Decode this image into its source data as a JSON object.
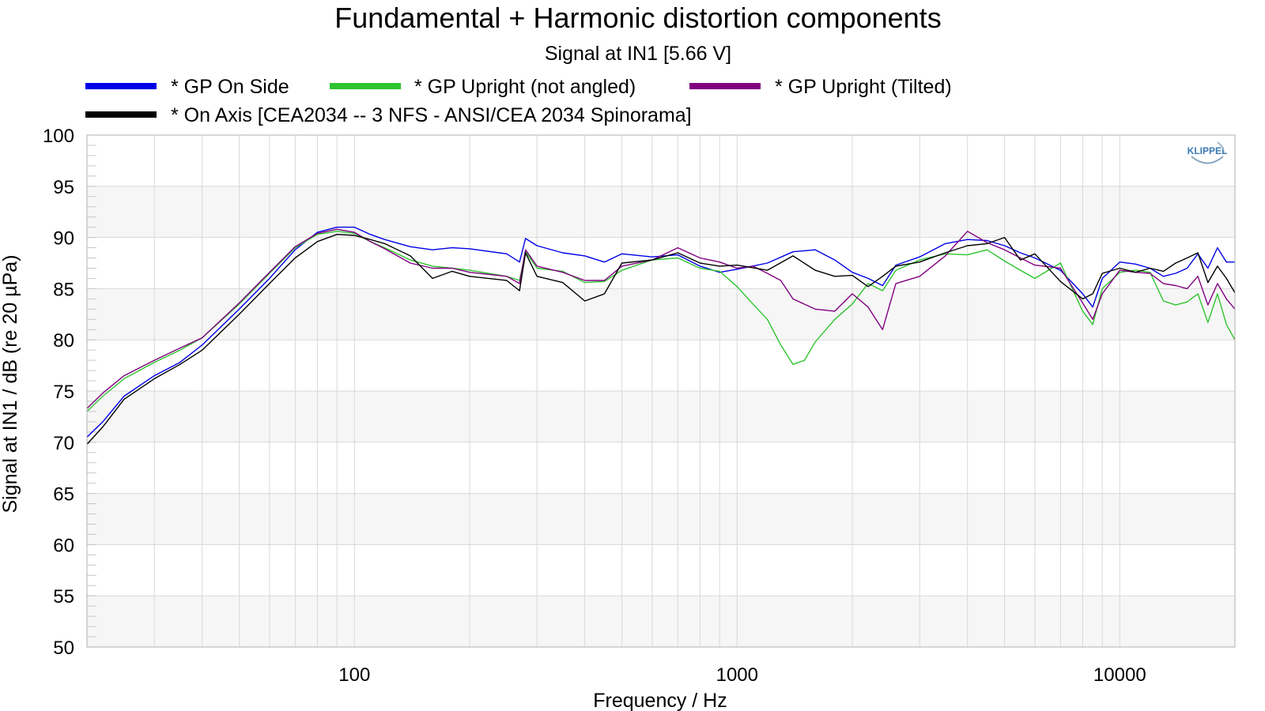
{
  "chart_data": {
    "type": "line",
    "title": "Fundamental + Harmonic distortion components",
    "subtitle": "Signal at IN1 [5.66 V]",
    "xlabel": "Frequency / Hz",
    "ylabel": "Signal at IN1 / dB (re 20 µPa)",
    "x_scale": "log",
    "xlim": [
      20,
      20000
    ],
    "ylim": [
      50,
      100
    ],
    "x_ticks": [
      100,
      1000,
      10000
    ],
    "x_tick_labels": [
      "100",
      "1000",
      "10000"
    ],
    "y_ticks": [
      50,
      55,
      60,
      65,
      70,
      75,
      80,
      85,
      90,
      95,
      100
    ],
    "y_tick_labels": [
      "50",
      "55",
      "60",
      "65",
      "70",
      "75",
      "80",
      "85",
      "90",
      "95",
      "100"
    ],
    "grid": true,
    "legend_position": "top",
    "logo": "KLIPPEL",
    "series": [
      {
        "name": "* GP On Side",
        "color": "#0000e6",
        "x": [
          20,
          22,
          25,
          30,
          35,
          40,
          50,
          60,
          70,
          80,
          90,
          100,
          110,
          120,
          140,
          160,
          180,
          200,
          250,
          270,
          280,
          300,
          350,
          400,
          450,
          500,
          600,
          700,
          800,
          900,
          1000,
          1200,
          1400,
          1600,
          1800,
          2000,
          2200,
          2400,
          2600,
          3000,
          3500,
          4000,
          4500,
          5000,
          5500,
          6000,
          7000,
          8000,
          8500,
          9000,
          10000,
          11000,
          12000,
          13000,
          14000,
          15000,
          16000,
          17000,
          18000,
          19000,
          20000
        ],
        "y": [
          70.5,
          72,
          74.5,
          76.5,
          77.8,
          79.5,
          83,
          86,
          88.8,
          90.5,
          91,
          91,
          90.3,
          89.8,
          89.1,
          88.8,
          89,
          88.9,
          88.4,
          87.6,
          89.9,
          89.2,
          88.5,
          88.2,
          87.6,
          88.4,
          88.1,
          88.3,
          87.2,
          86.6,
          86.9,
          87.5,
          88.6,
          88.8,
          87.8,
          86.6,
          86.0,
          85.3,
          87.3,
          88.1,
          89.4,
          89.8,
          89.7,
          89.2,
          88.5,
          88.0,
          86.8,
          84.5,
          83.2,
          86.0,
          87.6,
          87.4,
          87.0,
          86.2,
          86.5,
          87.0,
          88.4,
          87.0,
          89.0,
          87.6,
          87.6
        ]
      },
      {
        "name": "* GP Upright (not angled)",
        "color": "#2ec42e",
        "x": [
          20,
          22,
          25,
          30,
          35,
          40,
          50,
          60,
          70,
          80,
          90,
          100,
          110,
          120,
          140,
          160,
          180,
          200,
          250,
          270,
          280,
          300,
          350,
          400,
          450,
          500,
          600,
          700,
          800,
          900,
          1000,
          1100,
          1200,
          1300,
          1400,
          1500,
          1600,
          1800,
          2000,
          2200,
          2400,
          2600,
          3000,
          3500,
          4000,
          4500,
          5000,
          5500,
          6000,
          7000,
          8000,
          8500,
          9000,
          10000,
          11000,
          12000,
          13000,
          14000,
          15000,
          16000,
          17000,
          18000,
          19000,
          20000
        ],
        "y": [
          73,
          74.5,
          76.2,
          77.8,
          79,
          80.2,
          83.5,
          86.5,
          89,
          90.3,
          90.6,
          90.4,
          89.6,
          89,
          87.8,
          87.2,
          87.0,
          86.8,
          86.2,
          85.8,
          88.6,
          87.0,
          86.7,
          85.6,
          85.7,
          86.8,
          87.8,
          88.0,
          87.0,
          86.7,
          85.2,
          83.5,
          82.0,
          79.5,
          77.6,
          78.0,
          79.8,
          82.0,
          83.5,
          85.5,
          84.8,
          86.8,
          87.8,
          88.4,
          88.3,
          88.8,
          87.7,
          86.8,
          86.0,
          87.5,
          82.8,
          81.5,
          85.0,
          86.6,
          86.8,
          86.6,
          83.8,
          83.4,
          83.7,
          84.5,
          81.7,
          84.5,
          81.5,
          80.0
        ]
      },
      {
        "name": "* GP Upright (Tilted)",
        "color": "#800080",
        "x": [
          20,
          22,
          25,
          30,
          35,
          40,
          50,
          60,
          70,
          80,
          90,
          100,
          110,
          120,
          140,
          160,
          180,
          200,
          250,
          270,
          280,
          300,
          350,
          400,
          450,
          500,
          600,
          700,
          800,
          900,
          1000,
          1100,
          1200,
          1300,
          1400,
          1600,
          1800,
          2000,
          2200,
          2400,
          2600,
          3000,
          3500,
          4000,
          4500,
          5000,
          5500,
          6000,
          7000,
          8000,
          8500,
          9000,
          10000,
          11000,
          12000,
          13000,
          14000,
          15000,
          16000,
          17000,
          18000,
          19000,
          20000
        ],
        "y": [
          73.3,
          74.8,
          76.5,
          78,
          79.2,
          80.2,
          83.6,
          86.6,
          89.1,
          90.4,
          90.8,
          90.5,
          89.6,
          88.9,
          87.5,
          87.0,
          87.0,
          86.6,
          86.2,
          85.5,
          88.8,
          87.2,
          86.6,
          85.8,
          85.8,
          87.2,
          87.8,
          89.0,
          88.0,
          87.6,
          87.0,
          87.2,
          86.5,
          85.8,
          84.0,
          83.0,
          82.8,
          84.5,
          83.2,
          81.0,
          85.5,
          86.2,
          88.2,
          90.6,
          89.5,
          88.8,
          88.0,
          87.3,
          87.0,
          83.6,
          82.0,
          84.5,
          86.8,
          86.6,
          86.5,
          85.5,
          85.3,
          85.0,
          86.2,
          83.4,
          85.5,
          84.0,
          83.0
        ]
      },
      {
        "name": "* On Axis [CEA2034 -- 3 NFS - ANSI/CEA 2034 Spinorama]",
        "color": "#000000",
        "x": [
          20,
          22,
          25,
          30,
          35,
          40,
          50,
          60,
          70,
          80,
          90,
          100,
          110,
          120,
          140,
          160,
          180,
          200,
          250,
          270,
          280,
          300,
          350,
          400,
          450,
          500,
          600,
          700,
          800,
          900,
          1000,
          1200,
          1400,
          1600,
          1800,
          2000,
          2200,
          2400,
          2600,
          3000,
          3500,
          4000,
          4500,
          5000,
          5500,
          6000,
          7000,
          8000,
          8500,
          9000,
          10000,
          11000,
          12000,
          13000,
          14000,
          15000,
          16000,
          17000,
          18000,
          19000,
          20000
        ],
        "y": [
          69.8,
          71.5,
          74.2,
          76.2,
          77.6,
          79,
          82.5,
          85.5,
          88,
          89.6,
          90.3,
          90.2,
          89.8,
          89.4,
          88.2,
          86.0,
          86.7,
          86.2,
          85.8,
          84.8,
          88.5,
          86.2,
          85.6,
          83.8,
          84.5,
          87.5,
          87.8,
          88.5,
          87.5,
          87.2,
          87.3,
          86.8,
          88.2,
          86.8,
          86.2,
          86.3,
          85.2,
          86.2,
          87.2,
          87.6,
          88.5,
          89.2,
          89.4,
          90.0,
          87.8,
          88.4,
          85.7,
          84.0,
          84.5,
          86.5,
          87.0,
          86.6,
          87.0,
          86.7,
          87.5,
          88.0,
          88.5,
          85.6,
          87.2,
          86.0,
          84.6
        ]
      }
    ]
  }
}
